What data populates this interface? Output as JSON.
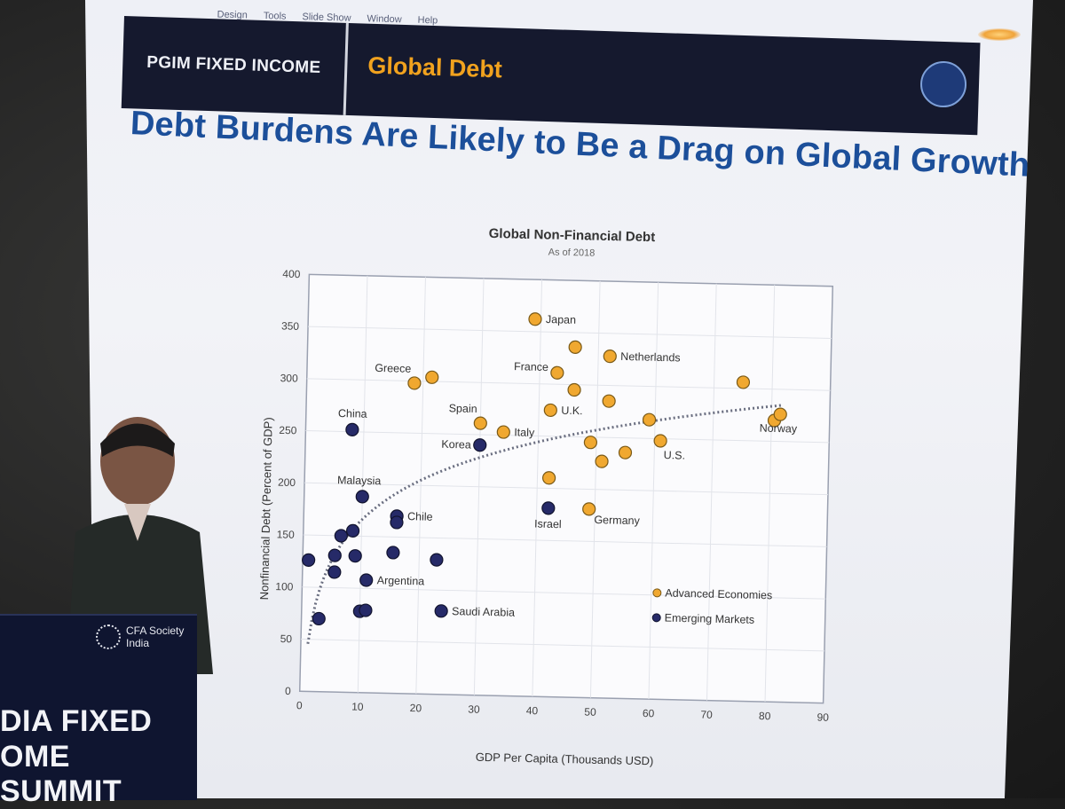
{
  "menu": [
    "Design",
    "Tools",
    "Slide Show",
    "Window",
    "Help"
  ],
  "header": {
    "brand": "PGIM FIXED INCOME",
    "section": "Global Debt"
  },
  "headline": "Debt Burdens Are Likely to Be a Drag on Global Growth",
  "podium": {
    "logo": "CFA Society\nIndia",
    "line1": "DIA FIXED",
    "line2": "OME SUMMIT"
  },
  "chart_data": {
    "type": "scatter",
    "title": "Global Non-Financial Debt",
    "subtitle": "As of 2018",
    "xlabel": "GDP Per Capita (Thousands USD)",
    "ylabel": "Nonfinancial Debt (Percent of GDP)",
    "xlim": [
      0,
      90
    ],
    "ylim": [
      0,
      400
    ],
    "xticks": [
      0,
      10,
      20,
      30,
      40,
      50,
      60,
      70,
      80,
      90
    ],
    "yticks": [
      0,
      50,
      100,
      150,
      200,
      250,
      300,
      350,
      400
    ],
    "grid": true,
    "legend_position": "bottom-right",
    "colors": {
      "advanced": "#f0a830",
      "emerging": "#262a68",
      "trend": "#6a6e80"
    },
    "series": [
      {
        "name": "Advanced Economies",
        "points": [
          {
            "x": 39,
            "y": 362,
            "label": "Japan"
          },
          {
            "x": 46,
            "y": 336
          },
          {
            "x": 52,
            "y": 328,
            "label": "Netherlands"
          },
          {
            "x": 43,
            "y": 311,
            "label": "France"
          },
          {
            "x": 18.5,
            "y": 298,
            "label": "Greece"
          },
          {
            "x": 21.5,
            "y": 304
          },
          {
            "x": 46,
            "y": 295
          },
          {
            "x": 52,
            "y": 285
          },
          {
            "x": 42,
            "y": 275,
            "label": "U.K."
          },
          {
            "x": 30,
            "y": 261,
            "label": "Spain"
          },
          {
            "x": 34,
            "y": 253,
            "label": "Italy"
          },
          {
            "x": 59,
            "y": 268
          },
          {
            "x": 75,
            "y": 306
          },
          {
            "x": 80.5,
            "y": 270
          },
          {
            "x": 81.5,
            "y": 276,
            "label": "Norway"
          },
          {
            "x": 61,
            "y": 248,
            "label": "U.S."
          },
          {
            "x": 49,
            "y": 245
          },
          {
            "x": 55,
            "y": 236
          },
          {
            "x": 51,
            "y": 227
          },
          {
            "x": 42,
            "y": 210
          },
          {
            "x": 49,
            "y": 181,
            "label": "Germany"
          }
        ]
      },
      {
        "name": "Emerging Markets",
        "points": [
          {
            "x": 8,
            "y": 252,
            "label": "China"
          },
          {
            "x": 30,
            "y": 240,
            "label": "Korea"
          },
          {
            "x": 10,
            "y": 188,
            "label": "Malaysia"
          },
          {
            "x": 16,
            "y": 170,
            "label": "Chile"
          },
          {
            "x": 16,
            "y": 164
          },
          {
            "x": 42,
            "y": 181,
            "label": "Israel"
          },
          {
            "x": 8.5,
            "y": 155
          },
          {
            "x": 6.5,
            "y": 150
          },
          {
            "x": 5.5,
            "y": 131
          },
          {
            "x": 9,
            "y": 131
          },
          {
            "x": 15.5,
            "y": 135
          },
          {
            "x": 23,
            "y": 129
          },
          {
            "x": 1,
            "y": 126
          },
          {
            "x": 5.5,
            "y": 115
          },
          {
            "x": 11,
            "y": 108,
            "label": "Argentina"
          },
          {
            "x": 24,
            "y": 80,
            "label": "Saudi Arabia"
          },
          {
            "x": 10,
            "y": 78
          },
          {
            "x": 11,
            "y": 79
          },
          {
            "x": 3,
            "y": 70
          }
        ]
      }
    ],
    "trendline": "logarithmic"
  }
}
